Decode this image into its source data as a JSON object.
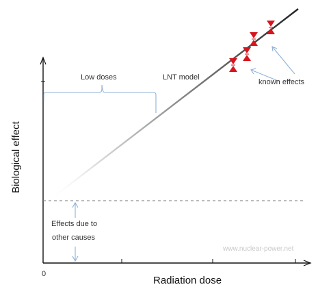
{
  "labels": {
    "low_doses": "Low doses",
    "lnt_model": "LNT model",
    "known_effects": "known effects",
    "y_axis": "Biological effect",
    "x_axis": "Radiation dose",
    "origin": "0",
    "other_causes_line1": "Effects due to",
    "other_causes_line2": "other causes",
    "watermark": "www.nuclear-power.net"
  },
  "colors": {
    "axis": "#111111",
    "line": "#333333",
    "bracket": "#8fb0d8",
    "arrow": "#8fb0d8",
    "marker": "#d8141e",
    "dashed": "#777777",
    "watermark": "#c8c8c8"
  },
  "markers": [
    {
      "name": "known-effect-marker-1"
    },
    {
      "name": "known-effect-marker-2"
    },
    {
      "name": "known-effect-marker-3"
    },
    {
      "name": "known-effect-marker-4"
    }
  ]
}
